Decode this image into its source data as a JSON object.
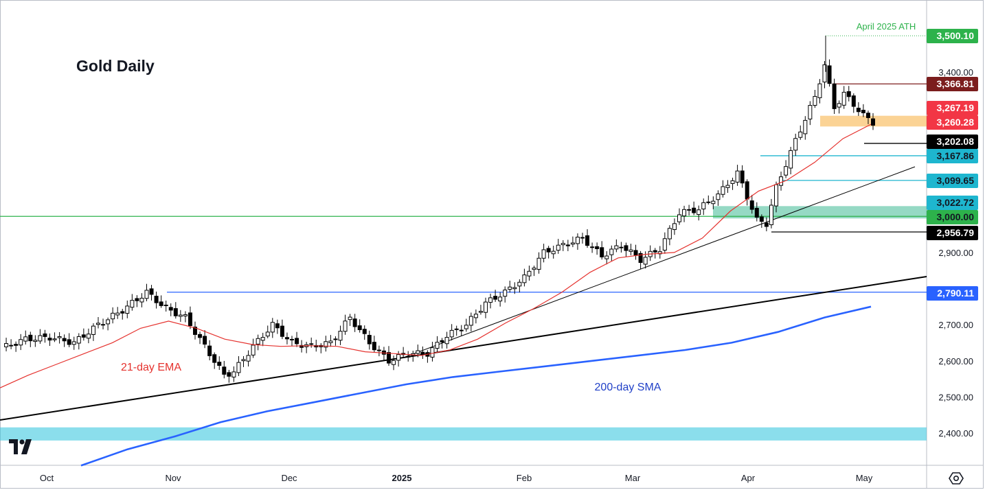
{
  "title": "Gold Daily",
  "chart_data": {
    "type": "candlestick",
    "title": "Gold Daily",
    "instrument": "Gold",
    "timeframe": "Daily",
    "x_ticks": [
      "Oct",
      "Nov",
      "Dec",
      "2025",
      "Feb",
      "Mar",
      "Apr",
      "May"
    ],
    "y_ticks": [
      "2,400.00",
      "2,500.00",
      "2,600.00",
      "2,700.00",
      "2,900.00",
      "3,400.00"
    ],
    "ylim": [
      2340,
      3560
    ],
    "price_labels": [
      {
        "text": "3,500.10",
        "price": 3500.1,
        "color": "#2db24b",
        "text_color": "#ffffff"
      },
      {
        "text": "3,366.81",
        "price": 3366.81,
        "color": "#7b1d1d",
        "text_color": "#ffffff"
      },
      {
        "text": "3,267.19",
        "price": 3267.19,
        "color": "#f23645",
        "text_color": "#ffffff"
      },
      {
        "text": "3,260.28",
        "price": 3260.28,
        "color": "#f23645",
        "text_color": "#ffffff"
      },
      {
        "text": "3,202.08",
        "price": 3202.08,
        "color": "#000000",
        "text_color": "#ffffff"
      },
      {
        "text": "3,167.86",
        "price": 3167.86,
        "color": "#1eb6cf",
        "text_color": "#131722"
      },
      {
        "text": "3,099.65",
        "price": 3099.65,
        "color": "#1eb6cf",
        "text_color": "#131722"
      },
      {
        "text": "3,022.72",
        "price": 3022.72,
        "color": "#1eb6cf",
        "text_color": "#131722"
      },
      {
        "text": "3,000.00",
        "price": 3000.0,
        "color": "#2db24b",
        "text_color": "#131722"
      },
      {
        "text": "2,956.79",
        "price": 2956.79,
        "color": "#000000",
        "text_color": "#ffffff"
      },
      {
        "text": "2,790.11",
        "price": 2790.11,
        "color": "#2962ff",
        "text_color": "#ffffff"
      }
    ],
    "annotations": [
      {
        "text": "April 2025 ATH",
        "color": "#2db24b"
      },
      {
        "text": "21-day EMA",
        "color": "#e5312d"
      },
      {
        "text": "200-day SMA",
        "color": "#1f3fc7"
      }
    ],
    "horizontal_levels": [
      {
        "price": 3000.0,
        "color": "#2db24b",
        "label": "3,000.00"
      },
      {
        "price": 2790.11,
        "color": "#2962ff",
        "label": "2,790.11"
      },
      {
        "price": 3366.81,
        "color": "#7b1d1d",
        "label": "3,366.81"
      },
      {
        "price": 3202.08,
        "color": "#000000",
        "label": "3,202.08"
      },
      {
        "price": 3167.86,
        "color": "#1eb6cf",
        "label": "3,167.86"
      },
      {
        "price": 3099.65,
        "color": "#1eb6cf",
        "label": "3,099.65"
      },
      {
        "price": 2956.79,
        "color": "#000000",
        "label": "2,956.79"
      }
    ],
    "zones": [
      {
        "from": 3260.28,
        "to": 3267.19,
        "color": "#f7a72b"
      },
      {
        "from": 3000.0,
        "to": 3022.72,
        "color": "#2bb38a"
      },
      {
        "from": 2385,
        "to": 2410,
        "color": "#3dc8e0"
      }
    ],
    "trendlines": [
      {
        "name": "long-term-support",
        "from": {
          "x": "Sep",
          "y": 2435
        },
        "to": {
          "x": "May",
          "y": 2832
        }
      },
      {
        "name": "short-term-support",
        "from": {
          "x": "Dec",
          "y": 2600
        },
        "to": {
          "x": "May",
          "y": 3140
        }
      }
    ],
    "series": [
      {
        "name": "21-day EMA",
        "color": "#e5312d",
        "points": [
          2525,
          2560,
          2590,
          2620,
          2650,
          2690,
          2710,
          2690,
          2660,
          2645,
          2640,
          2642,
          2640,
          2625,
          2620,
          2615,
          2630,
          2660,
          2705,
          2745,
          2790,
          2845,
          2885,
          2895,
          2900,
          2940,
          3015,
          3070,
          3100,
          3150,
          3215,
          3255
        ]
      },
      {
        "name": "200-day SMA",
        "color": "#2962ff",
        "points": [
          2310,
          2355,
          2390,
          2430,
          2460,
          2485,
          2510,
          2535,
          2555,
          2570,
          2585,
          2600,
          2615,
          2630,
          2650,
          2680,
          2720,
          2750
        ]
      }
    ]
  },
  "ui": {
    "settings_icon": "settings-gear-icon",
    "logo": "tradingview-logo"
  }
}
